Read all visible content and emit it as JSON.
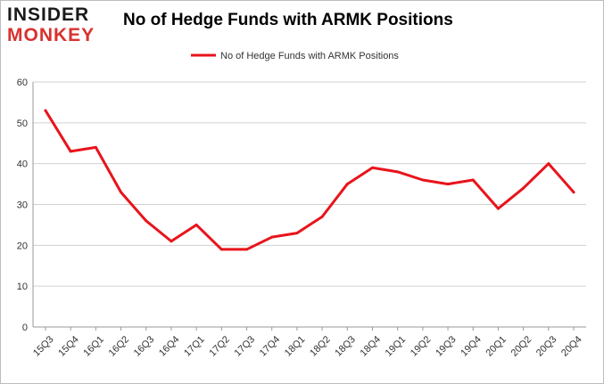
{
  "brand": {
    "line1": "INSIDER",
    "line2": "MONKEY"
  },
  "colors": {
    "line": "#e8141b",
    "grid": "#d0d0d0",
    "brand_red": "#d8322f"
  },
  "chart_data": {
    "type": "line",
    "title": "No of Hedge Funds with ARMK Positions",
    "xlabel": "",
    "ylabel": "",
    "ylim": [
      0,
      60
    ],
    "yticks": [
      0,
      10,
      20,
      30,
      40,
      50,
      60
    ],
    "grid": "horizontal",
    "legend_position": "top-center",
    "categories": [
      "15Q3",
      "15Q4",
      "16Q1",
      "16Q2",
      "16Q3",
      "16Q4",
      "17Q1",
      "17Q2",
      "17Q3",
      "17Q4",
      "18Q1",
      "18Q2",
      "18Q3",
      "18Q4",
      "19Q1",
      "19Q2",
      "19Q3",
      "19Q4",
      "20Q1",
      "20Q2",
      "20Q3",
      "20Q4"
    ],
    "series": [
      {
        "name": "No of Hedge Funds with ARMK Positions",
        "values": [
          53,
          43,
          44,
          33,
          26,
          21,
          25,
          19,
          19,
          22,
          23,
          27,
          35,
          39,
          38,
          36,
          35,
          36,
          29,
          34,
          40,
          33
        ]
      }
    ]
  }
}
